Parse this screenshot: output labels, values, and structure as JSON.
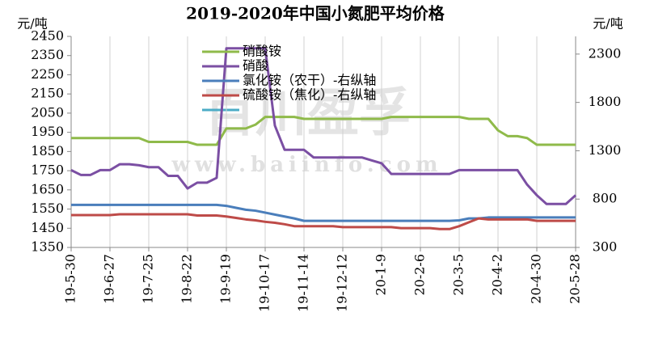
{
  "chart_data": {
    "type": "line",
    "title": "2019-2020年中国小氮肥平均价格",
    "ylabel": "元/吨",
    "y2label": "元/吨",
    "watermark": "百川盈孚",
    "watermark_url": "www.baiinfo.com",
    "categories": [
      "19-5-30",
      null,
      null,
      null,
      "19-6-27",
      null,
      null,
      null,
      "19-7-25",
      null,
      null,
      null,
      "19-8-22",
      null,
      null,
      null,
      "19-9-19",
      null,
      null,
      null,
      "19-10-17",
      null,
      null,
      null,
      "19-11-14",
      null,
      null,
      null,
      "19-12-12",
      null,
      null,
      null,
      "20-1-9",
      null,
      null,
      null,
      "20-2-6",
      null,
      null,
      null,
      "20-3-5",
      null,
      null,
      null,
      "20-4-2",
      null,
      null,
      null,
      "20-4-30",
      null,
      null,
      null,
      "20-5-28"
    ],
    "ylim": [
      1350,
      2450
    ],
    "yticks": [
      1350,
      1450,
      1550,
      1650,
      1750,
      1850,
      1950,
      2050,
      2150,
      2250,
      2350,
      2450
    ],
    "y2lim": [
      300,
      2483
    ],
    "y2ticks": [
      300,
      800,
      1300,
      1800,
      2300
    ],
    "grid": "x",
    "series": [
      {
        "name": "硝酸铵",
        "color": "#8fba4a",
        "values": [
          1920,
          1920,
          1920,
          1920,
          1920,
          1920,
          1920,
          1920,
          1900,
          1900,
          1900,
          1900,
          1900,
          1885,
          1885,
          1885,
          1970,
          1970,
          1970,
          1990,
          2030,
          2030,
          2030,
          2030,
          2020,
          2020,
          2020,
          2020,
          2020,
          2020,
          2020,
          2020,
          2020,
          2030,
          2030,
          2030,
          2030,
          2030,
          2030,
          2030,
          2030,
          2020,
          2020,
          2020,
          1960,
          1930,
          1930,
          1920,
          1885,
          1885,
          1885,
          1885,
          1885
        ]
      },
      {
        "name": "硝酸",
        "color": "#7b4fa3",
        "axis": "y2",
        "values": [
          1100,
          1050,
          1050,
          1100,
          1100,
          1160,
          1160,
          1150,
          1130,
          1130,
          1040,
          1040,
          910,
          970,
          970,
          1020,
          2360,
          2360,
          2360,
          2360,
          2360,
          1560,
          1310,
          1310,
          1310,
          1230,
          1230,
          1230,
          1230,
          1230,
          1230,
          1200,
          1170,
          1060,
          1060,
          1060,
          1060,
          1060,
          1060,
          1060,
          1100,
          1100,
          1100,
          1100,
          1100,
          1100,
          1100,
          950,
          840,
          750,
          750,
          750,
          840
        ]
      },
      {
        "name": "氯化铵（农干）-右纵轴",
        "color": "#4a7ebb",
        "axis": "y2",
        "values": [
          740,
          740,
          740,
          740,
          740,
          740,
          740,
          740,
          740,
          740,
          740,
          740,
          740,
          740,
          740,
          740,
          730,
          710,
          690,
          680,
          660,
          640,
          620,
          600,
          575,
          575,
          575,
          575,
          575,
          575,
          575,
          575,
          575,
          575,
          575,
          575,
          575,
          575,
          575,
          575,
          580,
          600,
          600,
          610,
          610,
          610,
          610,
          610,
          610,
          610,
          610,
          610,
          610
        ]
      },
      {
        "name": "硫酸铵（焦化）-右纵轴",
        "color": "#be4b48",
        "axis": "y2",
        "values": [
          635,
          635,
          635,
          635,
          635,
          643,
          643,
          643,
          643,
          643,
          643,
          643,
          643,
          630,
          630,
          630,
          620,
          605,
          590,
          580,
          565,
          555,
          540,
          520,
          520,
          520,
          520,
          520,
          510,
          510,
          510,
          510,
          510,
          510,
          500,
          500,
          500,
          500,
          490,
          490,
          520,
          560,
          600,
          590,
          590,
          590,
          590,
          590,
          575,
          575,
          575,
          575,
          575
        ]
      }
    ]
  }
}
